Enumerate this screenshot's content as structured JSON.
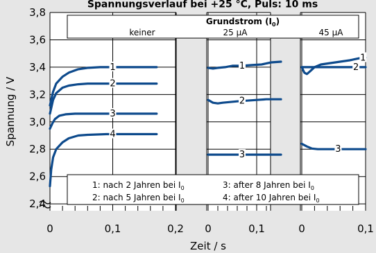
{
  "chart_data": {
    "type": "line",
    "title": "Spannungsverlauf bei +25 °C, Puls: 10 ms",
    "ylabel": "Spannung / V",
    "xlabel": "Zeit / s",
    "ylim": [
      2.35,
      3.8
    ],
    "yticks": [
      "3,8",
      "3,6",
      "3,4",
      "3,2",
      "3,0",
      "2,8",
      "2,6",
      "2,4"
    ],
    "ytick_values": [
      3.8,
      3.6,
      3.4,
      3.2,
      3.0,
      2.8,
      2.6,
      2.4
    ],
    "grundstrom_title": "Grundstrom (I",
    "grundstrom_sub": "0",
    "grundstrom_close": ")",
    "panels": [
      {
        "header": "keiner",
        "xlim": [
          0,
          0.2
        ],
        "xticks": [
          "0",
          "0,1",
          "0,2"
        ],
        "xtick_values": [
          0,
          0.1,
          0.2
        ],
        "series": [
          {
            "label": "1",
            "x": [
              0,
              0.005,
              0.01,
              0.02,
              0.03,
              0.045,
              0.06,
              0.08,
              0.12,
              0.17
            ],
            "y": [
              3.12,
              3.22,
              3.28,
              3.33,
              3.36,
              3.385,
              3.395,
              3.4,
              3.4,
              3.4
            ]
          },
          {
            "label": "2",
            "x": [
              0,
              0.005,
              0.01,
              0.02,
              0.03,
              0.045,
              0.06,
              0.09,
              0.13,
              0.17
            ],
            "y": [
              3.06,
              3.16,
              3.21,
              3.25,
              3.265,
              3.275,
              3.28,
              3.28,
              3.28,
              3.28
            ]
          },
          {
            "label": "3",
            "x": [
              0,
              0.004,
              0.008,
              0.015,
              0.025,
              0.04,
              0.06,
              0.09,
              0.13,
              0.17
            ],
            "y": [
              2.95,
              2.99,
              3.02,
              3.045,
              3.055,
              3.06,
              3.06,
              3.06,
              3.06,
              3.06
            ]
          },
          {
            "label": "4",
            "x": [
              0,
              0.002,
              0.005,
              0.01,
              0.02,
              0.03,
              0.045,
              0.06,
              0.09,
              0.13,
              0.17
            ],
            "y": [
              2.53,
              2.65,
              2.74,
              2.8,
              2.85,
              2.88,
              2.9,
              2.905,
              2.91,
              2.91,
              2.91
            ]
          }
        ],
        "label_x": [
          0.1,
          0.1,
          0.1,
          0.1
        ]
      },
      {
        "header": "25 µA",
        "xlim": [
          0,
          0.15
        ],
        "xticks": [
          "0",
          "0,1"
        ],
        "xtick_values": [
          0,
          0.1
        ],
        "series": [
          {
            "label": "1",
            "x": [
              0,
              0.01,
              0.02,
              0.035,
              0.05,
              0.07,
              0.09,
              0.11,
              0.13,
              0.15
            ],
            "y": [
              3.395,
              3.39,
              3.395,
              3.4,
              3.41,
              3.41,
              3.415,
              3.42,
              3.435,
              3.44
            ]
          },
          {
            "label": "2",
            "x": [
              0,
              0.01,
              0.02,
              0.03,
              0.045,
              0.06,
              0.08,
              0.1,
              0.12,
              0.15
            ],
            "y": [
              3.16,
              3.14,
              3.135,
              3.14,
              3.145,
              3.15,
              3.155,
              3.16,
              3.165,
              3.165
            ]
          },
          {
            "label": "3",
            "x": [
              0,
              0.15
            ],
            "y": [
              2.76,
              2.76
            ]
          }
        ],
        "label_x": [
          0.07,
          0.07,
          0.07
        ]
      },
      {
        "header": "45 µA",
        "xlim": [
          0,
          0.1
        ],
        "xticks": [
          "0",
          "0,1"
        ],
        "xtick_values": [
          0,
          0.1
        ],
        "series": [
          {
            "label": "1",
            "x": [
              0,
              0.004,
              0.008,
              0.013,
              0.02,
              0.03,
              0.045,
              0.06,
              0.075,
              0.09,
              0.1
            ],
            "y": [
              3.4,
              3.36,
              3.35,
              3.37,
              3.4,
              3.42,
              3.43,
              3.44,
              3.45,
              3.465,
              3.47
            ]
          },
          {
            "label": "2",
            "x": [
              0,
              0.05,
              0.1
            ],
            "y": [
              3.4,
              3.4,
              3.4
            ]
          },
          {
            "label": "3",
            "x": [
              0,
              0.008,
              0.016,
              0.025,
              0.04,
              0.06,
              0.08,
              0.1
            ],
            "y": [
              2.84,
              2.82,
              2.805,
              2.8,
              2.8,
              2.8,
              2.8,
              2.8
            ]
          }
        ],
        "label_x": [
          0.096,
          0.085,
          0.057
        ]
      }
    ],
    "legend": [
      {
        "text": "1: nach 2 Jahren bei I",
        "sub": "0"
      },
      {
        "text": "3: after 8 Jahren bei I",
        "sub": "0"
      },
      {
        "text": "2: nach 5 Jahren bei I",
        "sub": "0"
      },
      {
        "text": "4: after 10 Jahren bei I",
        "sub": "0"
      }
    ],
    "line_color": "#0d4a8c",
    "grid": true,
    "legend_position": "bottom"
  }
}
